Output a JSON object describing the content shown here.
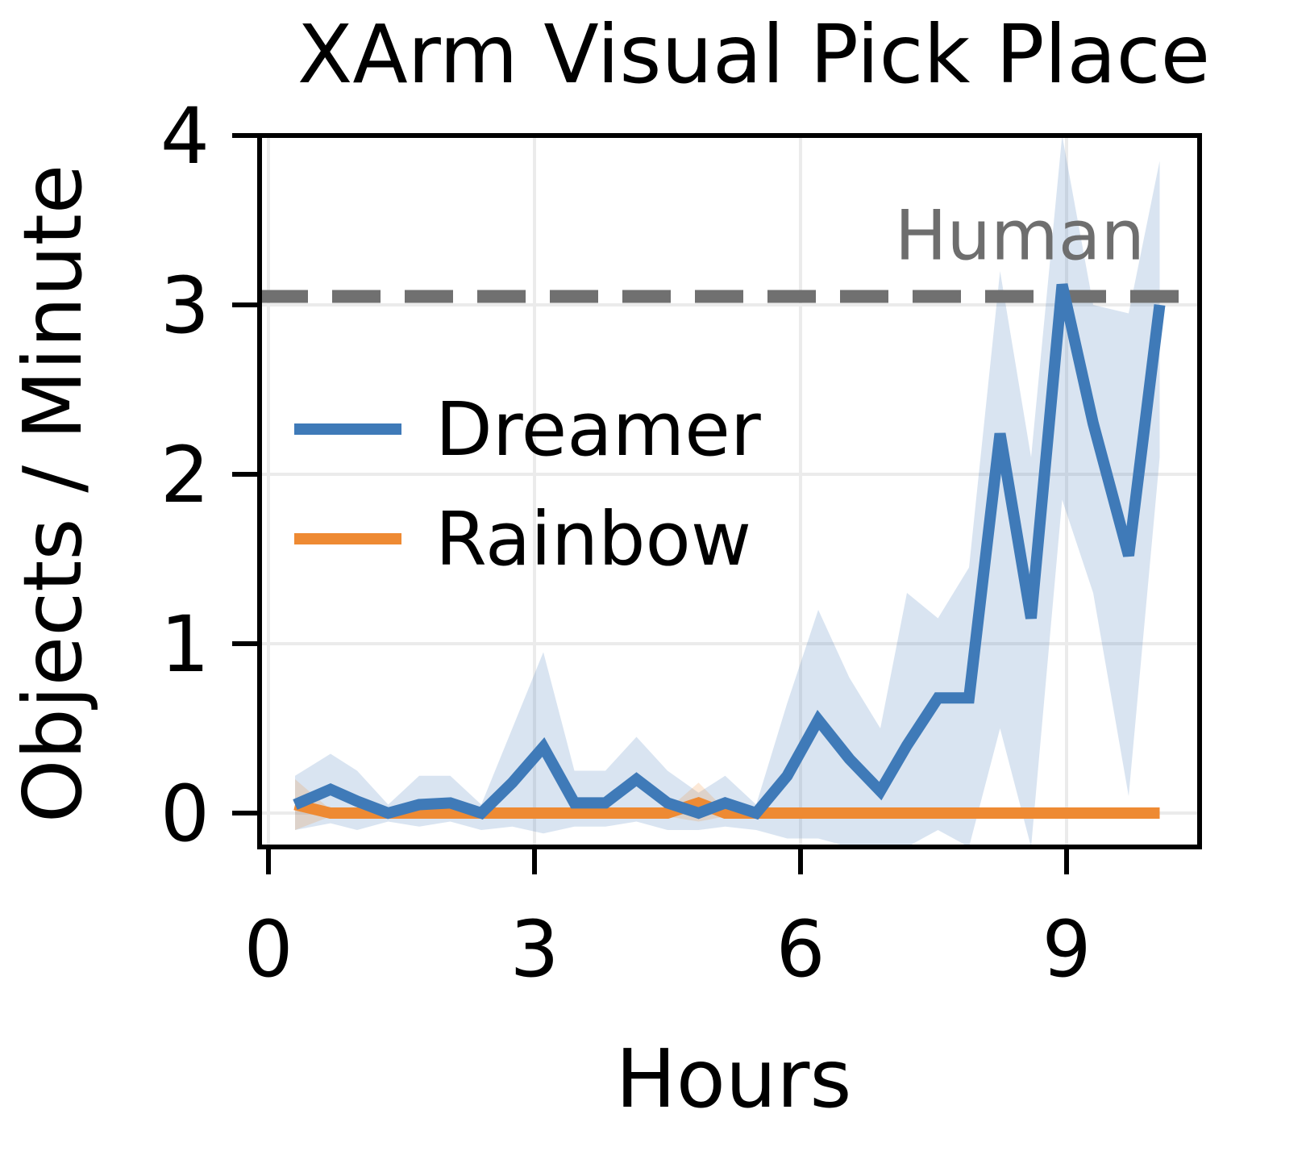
{
  "chart_data": {
    "type": "line",
    "title": "XArm Visual Pick Place",
    "xlabel": "Hours",
    "ylabel": "Objects / Minute",
    "xlim": [
      -0.1,
      10.5
    ],
    "ylim": [
      -0.2,
      4
    ],
    "xticks": [
      0,
      3,
      6,
      9
    ],
    "yticks": [
      0,
      1,
      2,
      3,
      4
    ],
    "grid": true,
    "legend": "center-left",
    "reference_line": {
      "label": "Human",
      "value": 3.05,
      "color": "#707070"
    },
    "series": [
      {
        "name": "Dreamer",
        "color": "#3f7ab8",
        "x": [
          0.3,
          0.7,
          1.0,
          1.35,
          1.7,
          2.05,
          2.4,
          2.75,
          3.1,
          3.45,
          3.8,
          4.15,
          4.5,
          4.85,
          5.15,
          5.5,
          5.85,
          6.2,
          6.55,
          6.9,
          7.2,
          7.55,
          7.9,
          8.25,
          8.6,
          8.95,
          9.3,
          9.7,
          10.05
        ],
        "y": [
          0.05,
          0.14,
          0.07,
          0.0,
          0.05,
          0.06,
          0.0,
          0.18,
          0.39,
          0.06,
          0.06,
          0.2,
          0.06,
          0.0,
          0.06,
          0.0,
          0.22,
          0.55,
          0.32,
          0.13,
          0.4,
          0.68,
          0.68,
          2.24,
          1.15,
          3.12,
          2.3,
          1.52,
          3.0
        ],
        "y_lower": [
          -0.1,
          -0.06,
          -0.1,
          -0.05,
          -0.08,
          -0.05,
          -0.1,
          -0.08,
          -0.12,
          -0.08,
          -0.08,
          -0.05,
          -0.1,
          -0.1,
          -0.08,
          -0.1,
          -0.15,
          -0.15,
          -0.2,
          -0.2,
          -0.2,
          -0.1,
          -0.2,
          0.5,
          -0.2,
          1.85,
          1.3,
          0.1,
          2.1
        ],
        "y_upper": [
          0.22,
          0.35,
          0.25,
          0.05,
          0.22,
          0.22,
          0.05,
          0.5,
          0.95,
          0.25,
          0.25,
          0.45,
          0.25,
          0.12,
          0.22,
          0.05,
          0.65,
          1.2,
          0.8,
          0.5,
          1.3,
          1.15,
          1.45,
          3.2,
          2.1,
          4.0,
          3.0,
          2.95,
          3.85
        ]
      },
      {
        "name": "Rainbow",
        "color": "#ee8a33",
        "x": [
          0.3,
          0.7,
          1.0,
          1.35,
          1.7,
          2.05,
          2.4,
          2.75,
          3.1,
          3.45,
          3.8,
          4.15,
          4.5,
          4.85,
          5.15,
          5.5,
          5.85,
          6.2,
          6.55,
          6.9,
          7.2,
          7.55,
          7.9,
          8.25,
          8.6,
          8.95,
          9.3,
          9.7,
          10.05
        ],
        "y": [
          0.05,
          0.0,
          0.0,
          0.0,
          0.0,
          0.0,
          0.0,
          0.0,
          0.0,
          0.0,
          0.0,
          0.0,
          0.0,
          0.06,
          0.0,
          0.0,
          0.0,
          0.0,
          0.0,
          0.0,
          0.0,
          0.0,
          0.0,
          0.0,
          0.0,
          0.0,
          0.0,
          0.0,
          0.0
        ],
        "y_lower": [
          -0.1,
          -0.02,
          -0.02,
          -0.02,
          -0.02,
          -0.02,
          -0.02,
          -0.02,
          -0.02,
          -0.02,
          -0.02,
          -0.02,
          -0.02,
          -0.05,
          -0.02,
          -0.02,
          -0.02,
          -0.02,
          -0.02,
          -0.02,
          -0.02,
          -0.02,
          -0.02,
          -0.02,
          -0.02,
          -0.02,
          -0.02,
          -0.02,
          -0.02
        ],
        "y_upper": [
          0.2,
          0.02,
          0.02,
          0.02,
          0.02,
          0.02,
          0.02,
          0.02,
          0.02,
          0.02,
          0.02,
          0.02,
          0.02,
          0.18,
          0.02,
          0.02,
          0.02,
          0.02,
          0.02,
          0.02,
          0.02,
          0.02,
          0.02,
          0.02,
          0.02,
          0.02,
          0.02,
          0.02,
          0.02
        ]
      }
    ]
  }
}
